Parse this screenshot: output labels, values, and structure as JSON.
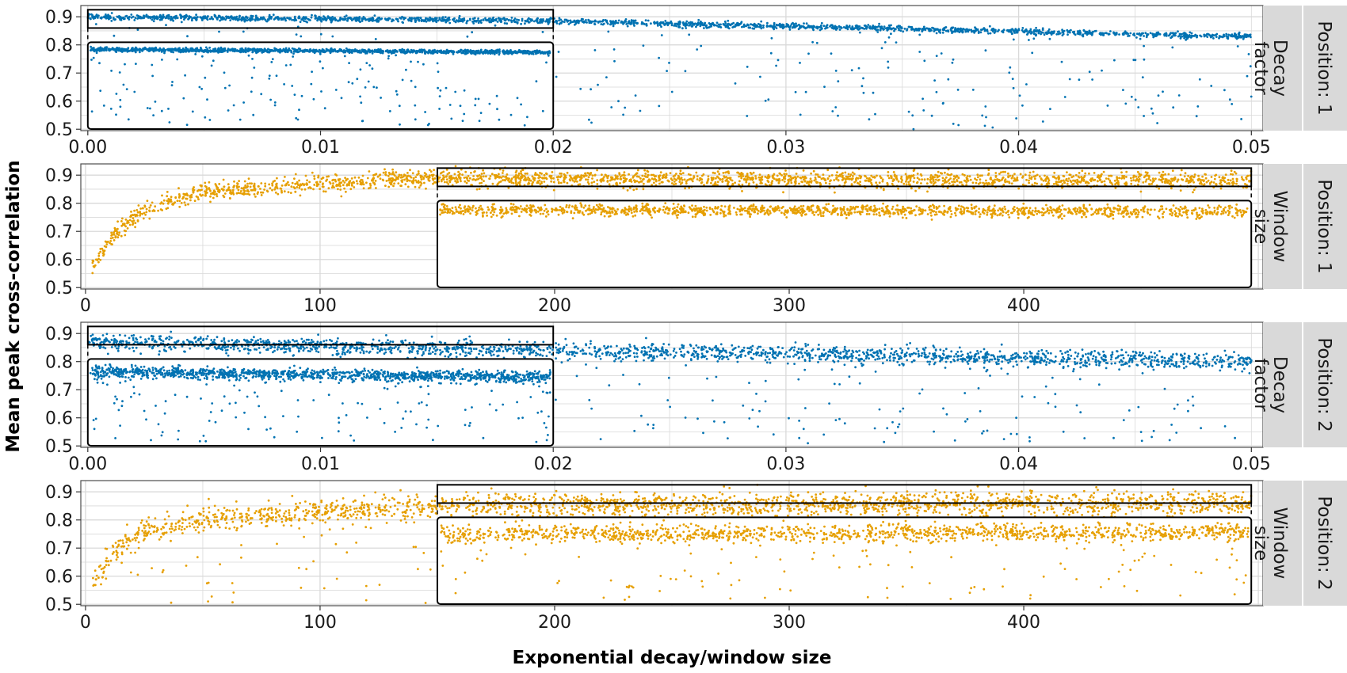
{
  "chart_data": {
    "type": "scatter",
    "xlabel": "Exponential decay/window size",
    "ylabel": "Mean peak cross-correlation",
    "colors": {
      "decay": "#0072B2",
      "window": "#E69F00"
    },
    "panels": [
      {
        "id": "p1",
        "strip": [
          "Position: 1",
          "Decay",
          "factor"
        ],
        "param": "decay",
        "xlim": [
          -0.0003,
          0.0505
        ],
        "ylim": [
          0.495,
          0.94
        ],
        "xticks": [
          0,
          0.01,
          0.02,
          0.03,
          0.04,
          0.05
        ],
        "xtick_labels": [
          "0.00",
          "0.01",
          "0.02",
          "0.03",
          "0.04",
          "0.05"
        ],
        "yticks": [
          0.5,
          0.6,
          0.7,
          0.8,
          0.9
        ],
        "ytick_labels": [
          "0.5",
          "0.6",
          "0.7",
          "0.8",
          "0.9"
        ],
        "zoom_x": [
          0,
          0.02
        ],
        "zoom_y": [
          0.86,
          0.925
        ],
        "trend": [
          [
            0,
            0.9
          ],
          [
            0.02,
            0.885
          ],
          [
            0.05,
            0.83
          ]
        ],
        "spread": 0.01,
        "outlier_rate": 0.13
      },
      {
        "id": "p2",
        "strip": [
          "Position: 1",
          "Window",
          "size"
        ],
        "param": "window",
        "xlim": [
          -2,
          502
        ],
        "ylim": [
          0.495,
          0.94
        ],
        "xticks": [
          0,
          100,
          200,
          300,
          400
        ],
        "xtick_labels": [
          "0",
          "100",
          "200",
          "300",
          "400"
        ],
        "yticks": [
          0.5,
          0.6,
          0.7,
          0.8,
          0.9
        ],
        "ytick_labels": [
          "0.5",
          "0.6",
          "0.7",
          "0.8",
          "0.9"
        ],
        "zoom_x": [
          150,
          497
        ],
        "zoom_y": [
          0.86,
          0.925
        ],
        "trend": [
          [
            3,
            0.57
          ],
          [
            10,
            0.67
          ],
          [
            25,
            0.78
          ],
          [
            50,
            0.84
          ],
          [
            100,
            0.87
          ],
          [
            150,
            0.89
          ],
          [
            497,
            0.88
          ]
        ],
        "spread": 0.03,
        "outlier_rate": 0.0
      },
      {
        "id": "p3",
        "strip": [
          "Position: 2",
          "Decay",
          "factor"
        ],
        "param": "decay",
        "xlim": [
          -0.0003,
          0.0505
        ],
        "ylim": [
          0.495,
          0.94
        ],
        "xticks": [
          0,
          0.01,
          0.02,
          0.03,
          0.04,
          0.05
        ],
        "xtick_labels": [
          "0.00",
          "0.01",
          "0.02",
          "0.03",
          "0.04",
          "0.05"
        ],
        "yticks": [
          0.5,
          0.6,
          0.7,
          0.8,
          0.9
        ],
        "ytick_labels": [
          "0.5",
          "0.6",
          "0.7",
          "0.8",
          "0.9"
        ],
        "zoom_x": [
          0,
          0.02
        ],
        "zoom_y": [
          0.86,
          0.925
        ],
        "trend": [
          [
            0,
            0.87
          ],
          [
            0.02,
            0.84
          ],
          [
            0.05,
            0.8
          ]
        ],
        "spread": 0.03,
        "outlier_rate": 0.1
      },
      {
        "id": "p4",
        "strip": [
          "Position: 2",
          "Window",
          "size"
        ],
        "param": "window",
        "xlim": [
          -2,
          502
        ],
        "ylim": [
          0.495,
          0.94
        ],
        "xticks": [
          0,
          100,
          200,
          300,
          400
        ],
        "xtick_labels": [
          "0",
          "100",
          "200",
          "300",
          "400"
        ],
        "yticks": [
          0.5,
          0.6,
          0.7,
          0.8,
          0.9
        ],
        "ytick_labels": [
          "0.5",
          "0.6",
          "0.7",
          "0.8",
          "0.9"
        ],
        "zoom_x": [
          150,
          497
        ],
        "zoom_y": [
          0.86,
          0.925
        ],
        "trend": [
          [
            3,
            0.56
          ],
          [
            10,
            0.68
          ],
          [
            25,
            0.76
          ],
          [
            50,
            0.8
          ],
          [
            100,
            0.83
          ],
          [
            150,
            0.85
          ],
          [
            497,
            0.86
          ]
        ],
        "spread": 0.045,
        "outlier_rate": 0.08
      }
    ]
  }
}
